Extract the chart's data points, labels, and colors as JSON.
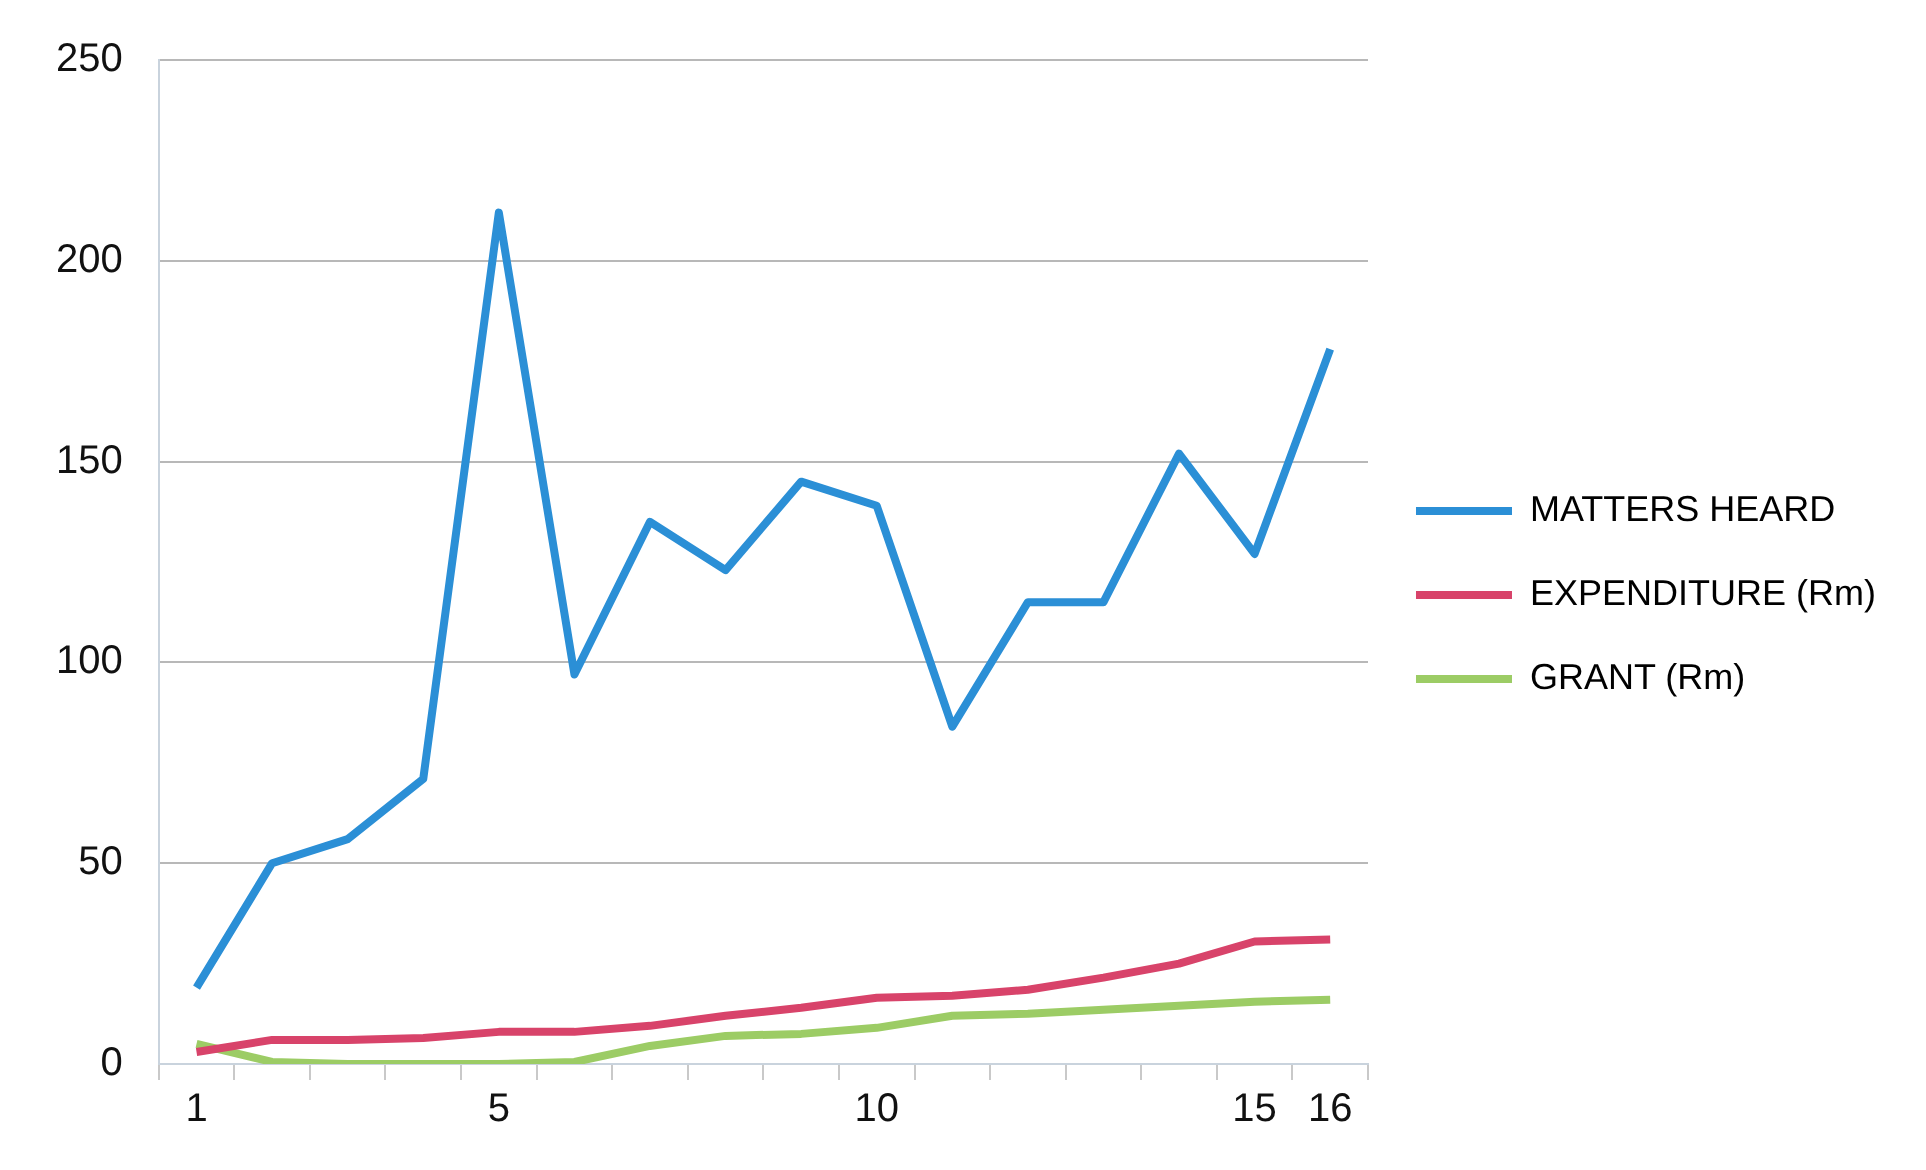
{
  "chart_data": {
    "type": "line",
    "categories": [
      "1",
      null,
      null,
      null,
      "5",
      null,
      null,
      null,
      null,
      "10",
      null,
      null,
      null,
      null,
      "15",
      "16"
    ],
    "series": [
      {
        "name": "MATTERS HEARD",
        "color": "#2b8fd6",
        "values": [
          19,
          50,
          56,
          71,
          212,
          97,
          135,
          123,
          145,
          139,
          84,
          115,
          115,
          152,
          127,
          178
        ]
      },
      {
        "name": "EXPENDITURE (Rm)",
        "color": "#d8436a",
        "values": [
          3,
          6,
          6,
          6.5,
          8,
          8,
          9.5,
          12,
          14,
          16.5,
          17,
          18.5,
          21.5,
          25,
          30.5,
          31
        ]
      },
      {
        "name": "GRANT (Rm)",
        "color": "#9ccc65",
        "values": [
          5,
          0.5,
          0,
          0,
          0,
          0.5,
          4.5,
          7,
          7.5,
          9,
          12,
          12.5,
          13.5,
          14.5,
          15.5,
          16
        ]
      }
    ],
    "ylim": [
      0,
      250
    ],
    "yticks": [
      0,
      50,
      100,
      150,
      200,
      250
    ],
    "grid": "y",
    "legend": "right",
    "marker": "none",
    "line_style": "solid"
  }
}
